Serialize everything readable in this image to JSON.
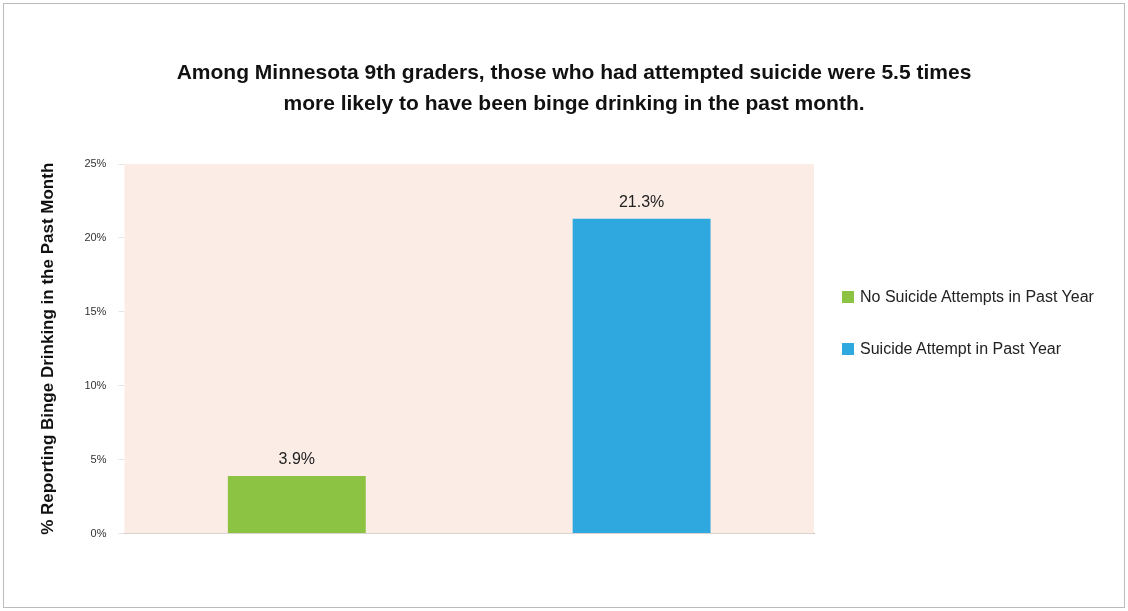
{
  "chart_data": {
    "type": "bar",
    "title": "Among Minnesota 9th graders, those who had attempted suicide were 5.5 times more likely to have been binge drinking in the past month.",
    "ylabel": "% Reporting Binge Drinking in the Past Month",
    "categories": [
      null,
      null
    ],
    "series": [
      {
        "name": "No Suicide Attempts in Past Year",
        "color": "#8dc342",
        "values": [
          3.9,
          null
        ],
        "value_labels": [
          "3.9%",
          null
        ]
      },
      {
        "name": "Suicide Attempt in Past Year",
        "color": "#2fa8e0",
        "values": [
          null,
          21.3
        ],
        "value_labels": [
          null,
          "21.3%"
        ]
      }
    ],
    "ylim": [
      0,
      25
    ],
    "yticks": [
      {
        "value": 0,
        "label": "0%"
      },
      {
        "value": 5,
        "label": "5%"
      },
      {
        "value": 10,
        "label": "10%"
      },
      {
        "value": 15,
        "label": "15%"
      },
      {
        "value": 20,
        "label": "20%"
      },
      {
        "value": 25,
        "label": "25%"
      }
    ],
    "grid": false,
    "legend": "right"
  }
}
